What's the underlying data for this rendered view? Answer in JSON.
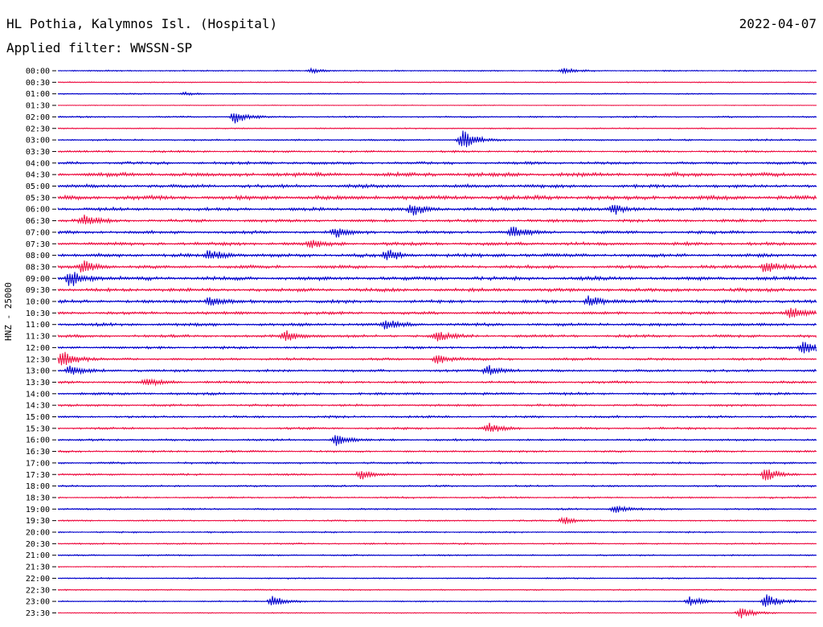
{
  "header": {
    "station": "HL Pothia, Kalymnos Isl. (Hospital)",
    "date": "2022-04-07",
    "filter": "Applied filter: WWSSN-SP"
  },
  "chart_data": {
    "type": "line",
    "ylabel": "HNZ - 25000",
    "ytick_labels": [
      "00:00",
      "00:30",
      "01:00",
      "01:30",
      "02:00",
      "02:30",
      "03:00",
      "03:30",
      "04:00",
      "04:30",
      "05:00",
      "05:30",
      "06:00",
      "06:30",
      "07:00",
      "07:30",
      "08:00",
      "08:30",
      "09:00",
      "09:30",
      "10:00",
      "10:30",
      "11:00",
      "11:30",
      "12:00",
      "12:30",
      "13:00",
      "13:30",
      "14:00",
      "14:30",
      "15:00",
      "15:30",
      "16:00",
      "16:30",
      "17:00",
      "17:30",
      "18:00",
      "18:30",
      "19:00",
      "19:30",
      "20:00",
      "20:30",
      "21:00",
      "21:30",
      "22:00",
      "22:30",
      "23:00",
      "23:30"
    ],
    "series_colors": [
      "#0000cc",
      "#ee1144"
    ],
    "row_noise_levels": [
      0.5,
      0.4,
      0.5,
      0.3,
      0.6,
      0.5,
      0.7,
      0.8,
      1.1,
      1.6,
      1.4,
      1.7,
      1.3,
      1.2,
      1.2,
      1.3,
      1.4,
      1.3,
      1.5,
      1.4,
      1.3,
      1.2,
      1.2,
      1.1,
      1.0,
      1.0,
      1.0,
      1.0,
      1.0,
      0.9,
      0.9,
      0.9,
      0.8,
      0.8,
      0.8,
      0.8,
      0.7,
      0.7,
      0.7,
      0.6,
      0.6,
      0.6,
      0.6,
      0.5,
      0.5,
      0.5,
      0.5,
      0.4
    ],
    "events": [
      {
        "row": 0,
        "time_min": 10,
        "amp": 3
      },
      {
        "row": 0,
        "time_min": 20,
        "amp": 3
      },
      {
        "row": 2,
        "time_min": 5,
        "amp": 2
      },
      {
        "row": 4,
        "time_min": 7,
        "amp": 8
      },
      {
        "row": 6,
        "time_min": 16,
        "amp": 12
      },
      {
        "row": 12,
        "time_min": 14,
        "amp": 7
      },
      {
        "row": 12,
        "time_min": 22,
        "amp": 6
      },
      {
        "row": 13,
        "time_min": 1,
        "amp": 7
      },
      {
        "row": 14,
        "time_min": 11,
        "amp": 6
      },
      {
        "row": 14,
        "time_min": 18,
        "amp": 8
      },
      {
        "row": 15,
        "time_min": 10,
        "amp": 5
      },
      {
        "row": 16,
        "time_min": 6,
        "amp": 7
      },
      {
        "row": 16,
        "time_min": 13,
        "amp": 7
      },
      {
        "row": 17,
        "time_min": 1,
        "amp": 9
      },
      {
        "row": 17,
        "time_min": 28,
        "amp": 10
      },
      {
        "row": 18,
        "time_min": 0.5,
        "amp": 12
      },
      {
        "row": 20,
        "time_min": 6,
        "amp": 6
      },
      {
        "row": 20,
        "time_min": 21,
        "amp": 7
      },
      {
        "row": 21,
        "time_min": 29,
        "amp": 7
      },
      {
        "row": 22,
        "time_min": 13,
        "amp": 6
      },
      {
        "row": 23,
        "time_min": 9,
        "amp": 8
      },
      {
        "row": 23,
        "time_min": 15,
        "amp": 6
      },
      {
        "row": 24,
        "time_min": 29.5,
        "amp": 10
      },
      {
        "row": 25,
        "time_min": 0.2,
        "amp": 12
      },
      {
        "row": 25,
        "time_min": 15,
        "amp": 6
      },
      {
        "row": 26,
        "time_min": 0.5,
        "amp": 7
      },
      {
        "row": 26,
        "time_min": 17,
        "amp": 8
      },
      {
        "row": 27,
        "time_min": 3.5,
        "amp": 6
      },
      {
        "row": 31,
        "time_min": 17,
        "amp": 7
      },
      {
        "row": 32,
        "time_min": 11,
        "amp": 7
      },
      {
        "row": 35,
        "time_min": 12,
        "amp": 6
      },
      {
        "row": 35,
        "time_min": 28,
        "amp": 9
      },
      {
        "row": 38,
        "time_min": 22,
        "amp": 5
      },
      {
        "row": 39,
        "time_min": 20,
        "amp": 5
      },
      {
        "row": 46,
        "time_min": 8.5,
        "amp": 7
      },
      {
        "row": 46,
        "time_min": 25,
        "amp": 6
      },
      {
        "row": 46,
        "time_min": 28,
        "amp": 9
      },
      {
        "row": 47,
        "time_min": 27,
        "amp": 7
      }
    ]
  }
}
